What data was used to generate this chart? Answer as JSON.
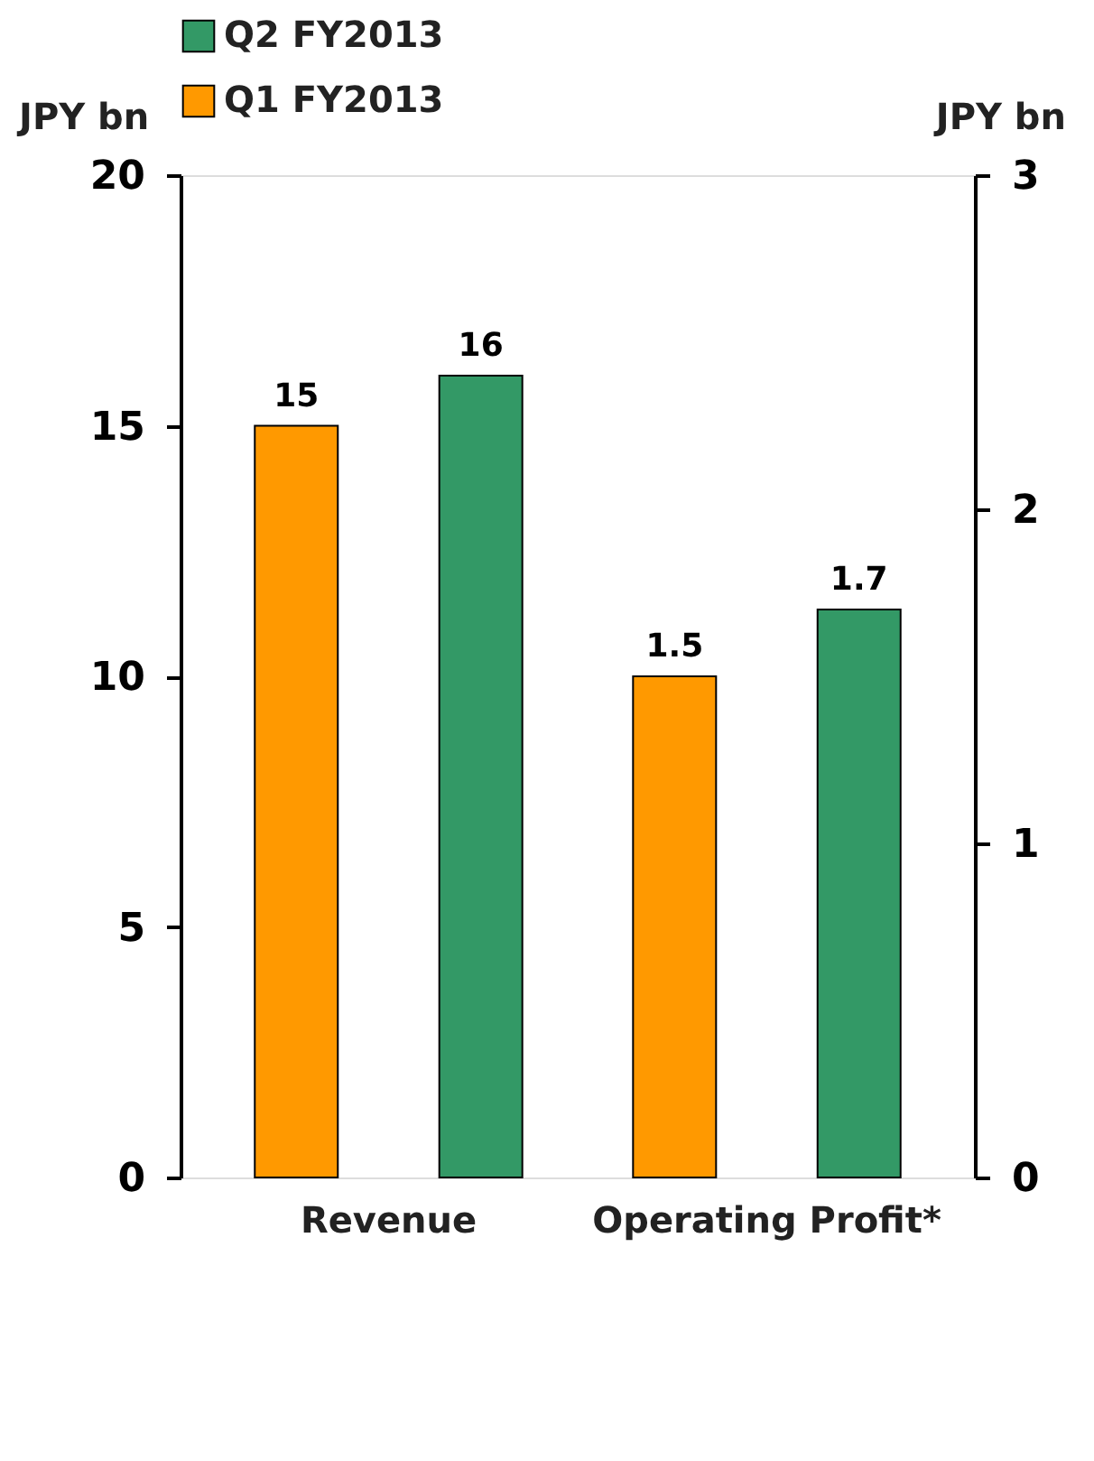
{
  "chart_data": {
    "type": "bar",
    "categories": [
      "Revenue",
      "Operating Profit*"
    ],
    "series": [
      {
        "name": "Q1 FY2013",
        "color": "#ff9900",
        "values": [
          15,
          null
        ]
      },
      {
        "name": "Q2 FY2013",
        "color": "#339966",
        "values": [
          16,
          null
        ]
      },
      {
        "color": "#ff9900",
        "values": [
          null,
          1.5
        ],
        "axis": "y2"
      },
      {
        "color": "#339966",
        "values": [
          null,
          1.7
        ],
        "axis": "y2"
      }
    ],
    "ylabel": "JPY bn",
    "y2label": "JPY bn",
    "ylim": [
      0,
      20
    ],
    "yticks": [
      0,
      5,
      10,
      15,
      20
    ],
    "y2lim": [
      0,
      3
    ],
    "y2ticks": [
      0,
      1,
      2,
      3
    ],
    "data_labels": true,
    "legend": "top",
    "grid": false
  }
}
